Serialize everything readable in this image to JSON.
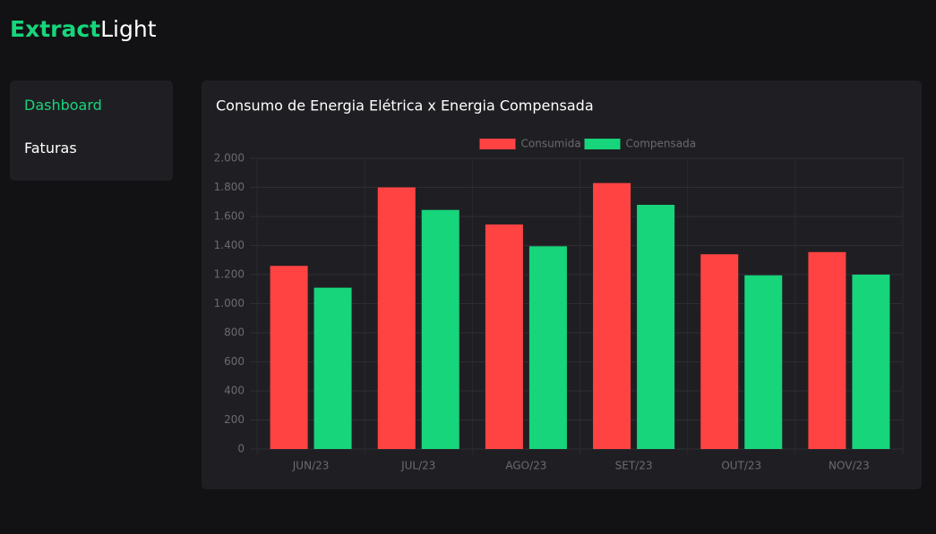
{
  "header": {
    "brand_accent": "Extract",
    "brand_rest": "Light"
  },
  "nav": {
    "items": [
      "Dashboard",
      "Faturas"
    ]
  },
  "chart_data": {
    "type": "bar",
    "title": "Consumo de Energia Elétrica x Energia Compensada",
    "categories": [
      "JUN/23",
      "JUL/23",
      "AGO/23",
      "SET/23",
      "OUT/23",
      "NOV/23"
    ],
    "series": [
      {
        "name": "Consumida",
        "color": "#ff4343",
        "values": [
          1260,
          1800,
          1545,
          1830,
          1340,
          1355
        ]
      },
      {
        "name": "Compensada",
        "color": "#17d57b",
        "values": [
          1110,
          1645,
          1395,
          1680,
          1195,
          1200
        ]
      }
    ],
    "ylim": [
      0,
      2000
    ],
    "yticks": [
      0,
      200,
      400,
      600,
      800,
      {
        "value": 1000,
        "label": "1.000"
      },
      {
        "value": 1200,
        "label": "1.200"
      },
      {
        "value": 1400,
        "label": "1.400"
      },
      {
        "value": 1600,
        "label": "1.600"
      },
      {
        "value": 1800,
        "label": "1.800"
      },
      {
        "value": 2000,
        "label": "2.000"
      }
    ],
    "grid": true,
    "legend": "top"
  }
}
